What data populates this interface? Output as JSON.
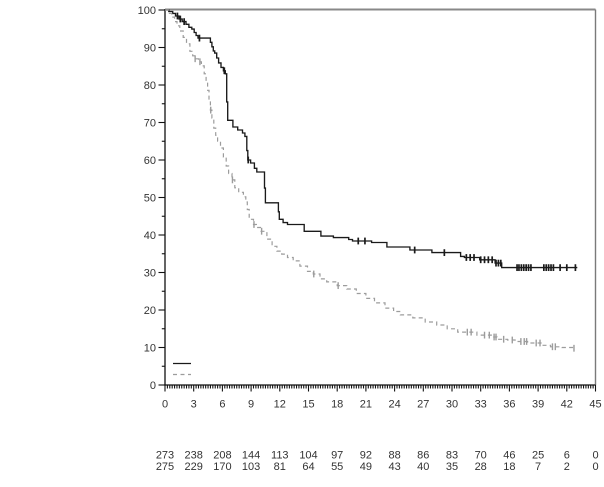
{
  "chart_data": {
    "type": "line",
    "subtype": "kaplan-meier-survival",
    "title": "",
    "grid": false,
    "x_axis": {
      "min": 0,
      "max": 45,
      "major_step": 3,
      "minor_step": 0.25,
      "tick_labels": [
        "0",
        "3",
        "6",
        "9",
        "12",
        "15",
        "18",
        "21",
        "24",
        "27",
        "30",
        "33",
        "36",
        "39",
        "42",
        "45"
      ]
    },
    "y_axis": {
      "min": 0,
      "max": 100,
      "major_step": 10,
      "minor_step": 5,
      "tick_labels": [
        "0",
        "10",
        "20",
        "30",
        "40",
        "50",
        "60",
        "70",
        "80",
        "90",
        "100"
      ]
    },
    "legend": {
      "position": "bottom-left",
      "entries": [
        {
          "id": "series-1",
          "label": "",
          "style": "solid",
          "color": "#1a1a1a"
        },
        {
          "id": "series-2",
          "label": "",
          "style": "dashed",
          "color": "#9c9c9c"
        }
      ]
    },
    "series": [
      {
        "id": "series-1",
        "line_style": "solid",
        "color": "#1a1a1a",
        "steps": [
          [
            0,
            100
          ],
          [
            0.4,
            99.6
          ],
          [
            0.8,
            99.1
          ],
          [
            1.1,
            98.4
          ],
          [
            1.45,
            97.6
          ],
          [
            1.8,
            96.9
          ],
          [
            2.2,
            96.2
          ],
          [
            2.5,
            95.4
          ],
          [
            2.8,
            94.9
          ],
          [
            3.05,
            94.0
          ],
          [
            3.25,
            93.2
          ],
          [
            3.45,
            92.5
          ],
          [
            4.75,
            91.4
          ],
          [
            4.9,
            90.2
          ],
          [
            5.05,
            89.1
          ],
          [
            5.2,
            88.5
          ],
          [
            5.4,
            87.2
          ],
          [
            5.6,
            85.9
          ],
          [
            5.85,
            84.7
          ],
          [
            6.1,
            83.8
          ],
          [
            6.3,
            83.0
          ],
          [
            6.45,
            75.5
          ],
          [
            6.55,
            70.6
          ],
          [
            7.1,
            68.8
          ],
          [
            7.6,
            68.0
          ],
          [
            8.1,
            67.2
          ],
          [
            8.35,
            66.3
          ],
          [
            8.55,
            62.5
          ],
          [
            8.65,
            60.0
          ],
          [
            8.95,
            59.2
          ],
          [
            9.35,
            57.8
          ],
          [
            9.6,
            56.8
          ],
          [
            10.4,
            52.5
          ],
          [
            10.5,
            48.6
          ],
          [
            11.85,
            46.2
          ],
          [
            11.95,
            44.2
          ],
          [
            12.35,
            43.3
          ],
          [
            12.8,
            42.8
          ],
          [
            14.55,
            41.0
          ],
          [
            16.3,
            39.7
          ],
          [
            17.6,
            39.3
          ],
          [
            19.2,
            38.8
          ],
          [
            19.6,
            38.4
          ],
          [
            21.6,
            38.0
          ],
          [
            23.2,
            36.8
          ],
          [
            25.6,
            36.0
          ],
          [
            27.9,
            35.3
          ],
          [
            30.9,
            34.3
          ],
          [
            31.3,
            34.0
          ],
          [
            32.9,
            33.4
          ],
          [
            34.5,
            32.5
          ],
          [
            35.2,
            31.3
          ],
          [
            43.1,
            31.3
          ]
        ],
        "censor_marks": [
          [
            1.3,
            98.4
          ],
          [
            1.6,
            97.6
          ],
          [
            2.0,
            96.9
          ],
          [
            3.6,
            92.5
          ],
          [
            6.2,
            83.8
          ],
          [
            8.7,
            60.0
          ],
          [
            20.2,
            38.4
          ],
          [
            20.9,
            38.4
          ],
          [
            26.1,
            36.0
          ],
          [
            29.2,
            35.3
          ],
          [
            31.5,
            34.0
          ],
          [
            31.9,
            34.0
          ],
          [
            32.3,
            34.0
          ],
          [
            33.0,
            33.4
          ],
          [
            33.4,
            33.4
          ],
          [
            33.8,
            33.4
          ],
          [
            34.2,
            33.4
          ],
          [
            34.6,
            32.5
          ],
          [
            34.85,
            32.5
          ],
          [
            35.1,
            32.5
          ],
          [
            36.8,
            31.3
          ],
          [
            37.0,
            31.3
          ],
          [
            37.25,
            31.3
          ],
          [
            37.5,
            31.3
          ],
          [
            37.75,
            31.3
          ],
          [
            38.0,
            31.3
          ],
          [
            38.25,
            31.3
          ],
          [
            39.6,
            31.3
          ],
          [
            39.85,
            31.3
          ],
          [
            40.1,
            31.3
          ],
          [
            40.35,
            31.3
          ],
          [
            40.6,
            31.3
          ],
          [
            41.3,
            31.3
          ],
          [
            42.0,
            31.3
          ],
          [
            42.9,
            31.3
          ]
        ]
      },
      {
        "id": "series-2",
        "line_style": "dashed",
        "color": "#9c9c9c",
        "steps": [
          [
            0,
            100
          ],
          [
            0.35,
            99.1
          ],
          [
            0.7,
            98.1
          ],
          [
            1.0,
            96.9
          ],
          [
            1.25,
            95.8
          ],
          [
            1.55,
            94.4
          ],
          [
            1.9,
            92.7
          ],
          [
            2.25,
            91.0
          ],
          [
            2.6,
            89.0
          ],
          [
            2.9,
            87.8
          ],
          [
            3.2,
            87.0
          ],
          [
            3.5,
            86.2
          ],
          [
            3.8,
            85.1
          ],
          [
            4.1,
            83.0
          ],
          [
            4.3,
            81.0
          ],
          [
            4.45,
            78.6
          ],
          [
            4.6,
            76.0
          ],
          [
            4.75,
            73.3
          ],
          [
            4.9,
            71.2
          ],
          [
            5.1,
            68.5
          ],
          [
            5.3,
            66.6
          ],
          [
            5.5,
            65.0
          ],
          [
            5.8,
            63.2
          ],
          [
            6.1,
            60.8
          ],
          [
            6.4,
            58.4
          ],
          [
            6.65,
            56.4
          ],
          [
            7.0,
            54.7
          ],
          [
            7.3,
            52.6
          ],
          [
            7.7,
            51.4
          ],
          [
            8.2,
            50.2
          ],
          [
            8.45,
            48.8
          ],
          [
            8.6,
            46.8
          ],
          [
            8.8,
            44.2
          ],
          [
            9.25,
            42.8
          ],
          [
            9.55,
            42.0
          ],
          [
            10.05,
            41.0
          ],
          [
            10.65,
            38.9
          ],
          [
            11.2,
            37.0
          ],
          [
            11.7,
            35.7
          ],
          [
            12.2,
            34.9
          ],
          [
            12.8,
            34.0
          ],
          [
            13.4,
            33.1
          ],
          [
            14.1,
            31.7
          ],
          [
            14.9,
            30.3
          ],
          [
            15.5,
            29.6
          ],
          [
            16.2,
            28.3
          ],
          [
            16.9,
            27.5
          ],
          [
            18.0,
            26.5
          ],
          [
            19.0,
            25.6
          ],
          [
            20.0,
            24.4
          ],
          [
            21.0,
            23.1
          ],
          [
            21.9,
            21.9
          ],
          [
            23.0,
            20.5
          ],
          [
            23.9,
            19.6
          ],
          [
            24.6,
            18.7
          ],
          [
            25.9,
            17.9
          ],
          [
            27.2,
            16.8
          ],
          [
            28.4,
            16.0
          ],
          [
            29.5,
            15.0
          ],
          [
            30.6,
            14.1
          ],
          [
            32.6,
            13.3
          ],
          [
            34.3,
            12.8
          ],
          [
            34.7,
            12.2
          ],
          [
            35.8,
            12.0
          ],
          [
            36.6,
            11.6
          ],
          [
            37.9,
            11.2
          ],
          [
            39.4,
            10.6
          ],
          [
            40.3,
            10.2
          ],
          [
            41.5,
            10.0
          ],
          [
            42.8,
            9.8
          ]
        ],
        "censor_marks": [
          [
            3.15,
            87.0
          ],
          [
            3.65,
            86.2
          ],
          [
            4.78,
            73.3
          ],
          [
            7.05,
            54.7
          ],
          [
            9.3,
            42.8
          ],
          [
            10.1,
            41.0
          ],
          [
            15.55,
            29.6
          ],
          [
            18.1,
            26.5
          ],
          [
            31.6,
            14.1
          ],
          [
            32.0,
            14.1
          ],
          [
            33.4,
            13.3
          ],
          [
            33.9,
            13.3
          ],
          [
            34.4,
            12.8
          ],
          [
            34.6,
            12.8
          ],
          [
            35.4,
            12.2
          ],
          [
            36.3,
            12.0
          ],
          [
            37.2,
            11.6
          ],
          [
            37.55,
            11.6
          ],
          [
            37.8,
            11.6
          ],
          [
            38.8,
            11.2
          ],
          [
            39.2,
            11.2
          ],
          [
            40.5,
            10.2
          ],
          [
            40.8,
            10.2
          ],
          [
            42.75,
            9.8
          ]
        ]
      }
    ],
    "risk_table": {
      "times": [
        0,
        3,
        6,
        9,
        12,
        15,
        18,
        21,
        24,
        27,
        30,
        33,
        36,
        39,
        42,
        45
      ],
      "rows": [
        {
          "id": "series-1",
          "values": [
            273,
            238,
            208,
            144,
            113,
            104,
            97,
            92,
            88,
            86,
            83,
            70,
            46,
            25,
            6,
            0
          ]
        },
        {
          "id": "series-2",
          "values": [
            275,
            229,
            170,
            103,
            81,
            64,
            55,
            49,
            43,
            40,
            35,
            28,
            18,
            7,
            2,
            0
          ]
        }
      ]
    },
    "layout_hints": {
      "frame_top_color": "#888888",
      "frame_right_color": "#7a7a7a",
      "axis_color": "#111111",
      "label_color": "#333333"
    }
  }
}
